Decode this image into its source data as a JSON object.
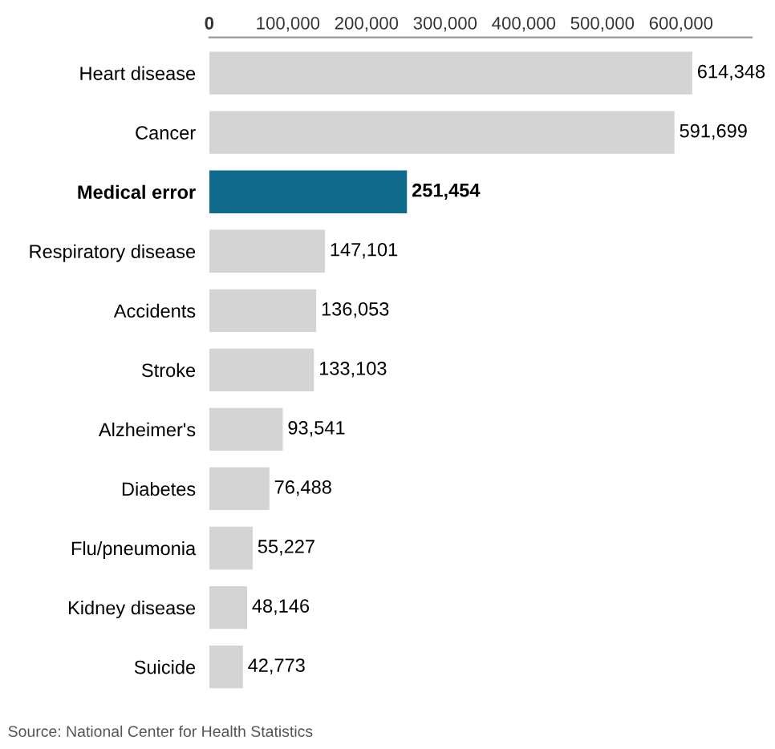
{
  "chart_data": {
    "type": "bar",
    "orientation": "horizontal",
    "categories": [
      "Heart disease",
      "Cancer",
      "Medical error",
      "Respiratory disease",
      "Accidents",
      "Stroke",
      "Alzheimer's",
      "Diabetes",
      "Flu/pneumonia",
      "Kidney disease",
      "Suicide"
    ],
    "values": [
      614348,
      591699,
      251454,
      147101,
      136053,
      133103,
      93541,
      76488,
      55227,
      48146,
      42773
    ],
    "value_labels": [
      "614,348",
      "591,699",
      "251,454",
      "147,101",
      "136,053",
      "133,103",
      "93,541",
      "76,488",
      "55,227",
      "48,146",
      "42,773"
    ],
    "colors": [
      "#d4d4d4",
      "#d4d4d4",
      "#0f6a8b",
      "#d4d4d4",
      "#d4d4d4",
      "#d4d4d4",
      "#d4d4d4",
      "#d4d4d4",
      "#d4d4d4",
      "#d4d4d4",
      "#d4d4d4"
    ],
    "xlim": [
      0,
      690000
    ],
    "xticks": [
      0,
      {
        "value": 100000,
        "label": "100,000"
      },
      {
        "value": 200000,
        "label": "200,000"
      },
      {
        "value": 300000,
        "label": "300,000"
      },
      {
        "value": 400000,
        "label": "400,000"
      },
      {
        "value": 500000,
        "label": "500,000"
      },
      {
        "value": 600000,
        "label": "600,000"
      }
    ],
    "grid": false,
    "legend": false,
    "annotations": [
      "Source: National Center for Health Statistics"
    ]
  }
}
